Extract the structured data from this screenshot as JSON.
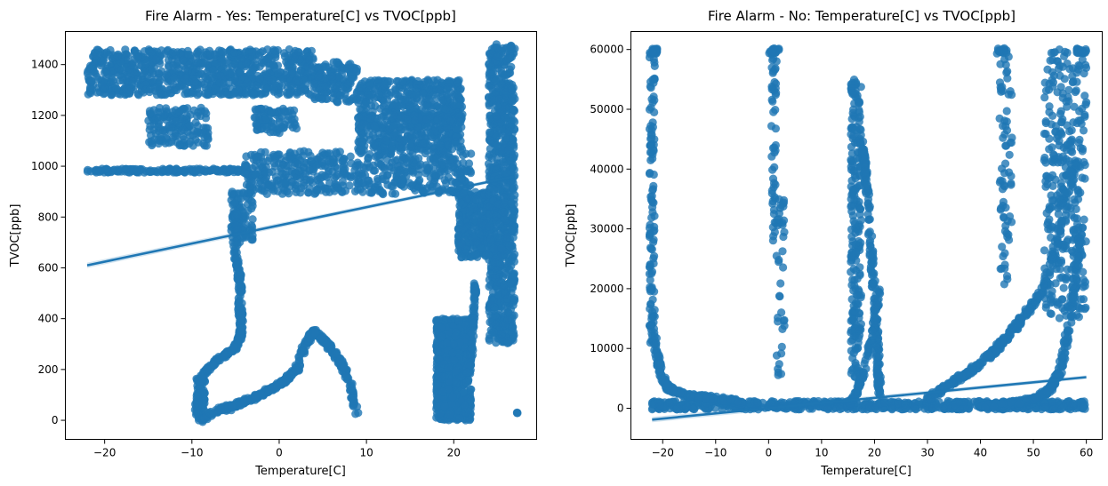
{
  "chart_data": [
    {
      "type": "scatter",
      "title": "Fire Alarm - Yes: Temperature[C] vs TVOC[ppb]",
      "xlabel": "Temperature[C]",
      "ylabel": "TVOC[ppb]",
      "xlim": [
        -24.5,
        29.5
      ],
      "ylim": [
        -75,
        1530
      ],
      "xticks": [
        -20,
        -10,
        0,
        10,
        20
      ],
      "yticks": [
        0,
        200,
        400,
        600,
        800,
        1000,
        1200,
        1400
      ],
      "grid": false,
      "point_color": "#1f77b4",
      "regression_line": {
        "x": [
          -22,
          27
        ],
        "y": [
          610,
          960
        ]
      },
      "point_bands": [
        {
          "x0": -22,
          "x1": 4,
          "y0": 1280,
          "y1": 1460,
          "n": 900
        },
        {
          "x0": 4,
          "x1": 9,
          "y0": 1250,
          "y1": 1410,
          "n": 150
        },
        {
          "x0": 9,
          "x1": 21,
          "y0": 1180,
          "y1": 1340,
          "n": 350
        },
        {
          "x0": -15,
          "x1": -8,
          "y0": 1080,
          "y1": 1230,
          "n": 150
        },
        {
          "x0": -3,
          "x1": 2,
          "y0": 1130,
          "y1": 1230,
          "n": 80
        },
        {
          "x0": -22,
          "x1": -4,
          "y0": 975,
          "y1": 990,
          "n": 160
        },
        {
          "x0": -4,
          "x1": 22,
          "y0": 890,
          "y1": 1060,
          "n": 550
        },
        {
          "x0": 9,
          "x1": 21,
          "y0": 1060,
          "y1": 1200,
          "n": 350
        },
        {
          "x0": -5.5,
          "x1": -3,
          "y0": 700,
          "y1": 900,
          "n": 90
        },
        {
          "x0": 20.5,
          "x1": 24,
          "y0": 640,
          "y1": 900,
          "n": 260
        },
        {
          "x0": 24,
          "x1": 27,
          "y0": 300,
          "y1": 1480,
          "n": 900
        },
        {
          "x0": 18,
          "x1": 22,
          "y0": 0,
          "y1": 400,
          "n": 800
        },
        {
          "x0": -9.5,
          "x1": -8.5,
          "y0": 0,
          "y1": 180,
          "n": 50
        }
      ],
      "point_curves": [
        {
          "x": [
            -5,
            -5,
            -4.5,
            -4.5,
            -4.3,
            -4.5,
            -5.2,
            -6.5,
            -8,
            -9.3,
            -9.5
          ],
          "y": [
            820,
            650,
            550,
            450,
            380,
            320,
            280,
            250,
            210,
            150,
            20
          ],
          "n": 320,
          "spread": 0.45
        },
        {
          "x": [
            -9,
            -7,
            -5,
            -3,
            0,
            2,
            3,
            4,
            5,
            6,
            7,
            8,
            9
          ],
          "y": [
            0,
            40,
            60,
            90,
            140,
            200,
            300,
            350,
            320,
            280,
            230,
            160,
            20
          ],
          "n": 380,
          "spread": 0.5
        },
        {
          "x": [
            -6,
            -4,
            -2,
            0,
            1
          ],
          "y": [
            40,
            70,
            100,
            140,
            160
          ],
          "n": 100,
          "spread": 0.4
        },
        {
          "x": [
            22,
            22.2,
            22.3,
            22.5
          ],
          "y": [
            250,
            350,
            450,
            540
          ],
          "n": 60,
          "spread": 0.3
        },
        {
          "x": [
            27.3
          ],
          "y": [
            30
          ],
          "n": 3,
          "spread": 0.1
        }
      ]
    },
    {
      "type": "scatter",
      "title": "Fire Alarm - No: Temperature[C] vs TVOC[ppb]",
      "xlabel": "Temperature[C]",
      "ylabel": "TVOC[ppb]",
      "xlim": [
        -26,
        63
      ],
      "ylim": [
        -5200,
        63000
      ],
      "xticks": [
        -20,
        -10,
        0,
        10,
        20,
        30,
        40,
        50,
        60
      ],
      "yticks": [
        0,
        10000,
        20000,
        30000,
        40000,
        50000,
        60000
      ],
      "grid": false,
      "point_color": "#1f77b4",
      "regression_line": {
        "x": [
          -22,
          60
        ],
        "y": [
          -1900,
          5200
        ]
      },
      "point_bands": [
        {
          "x0": -22,
          "x1": 60,
          "y0": -200,
          "y1": 1200,
          "n": 700
        },
        {
          "x0": -22.5,
          "x1": -21.5,
          "y0": 10000,
          "y1": 60000,
          "n": 120
        },
        {
          "x0": 0.5,
          "x1": 1.5,
          "y0": 28000,
          "y1": 60000,
          "n": 50
        },
        {
          "x0": 1.5,
          "x1": 3,
          "y0": 5000,
          "y1": 35000,
          "n": 40
        },
        {
          "x0": 15.5,
          "x1": 17.5,
          "y0": 5000,
          "y1": 55000,
          "n": 220
        },
        {
          "x0": 43.5,
          "x1": 46,
          "y0": 20000,
          "y1": 60000,
          "n": 70
        },
        {
          "x0": 52,
          "x1": 60,
          "y0": 15000,
          "y1": 60000,
          "n": 320
        },
        {
          "x0": -22,
          "x1": -21,
          "y0": 59300,
          "y1": 60200,
          "n": 30
        },
        {
          "x0": 0,
          "x1": 2,
          "y0": 59300,
          "y1": 60200,
          "n": 20
        },
        {
          "x0": 43,
          "x1": 45,
          "y0": 59300,
          "y1": 60200,
          "n": 20
        },
        {
          "x0": 58,
          "x1": 60,
          "y0": 59300,
          "y1": 60200,
          "n": 20
        }
      ],
      "point_curves": [
        {
          "x": [
            -21.5,
            -20.5,
            -19,
            -17,
            -14,
            -10,
            -6
          ],
          "y": [
            12000,
            6000,
            3500,
            2500,
            2000,
            1700,
            1200
          ],
          "n": 200,
          "spread": 0.5
        },
        {
          "x": [
            17.5,
            18.5,
            19.5,
            20.5,
            21
          ],
          "y": [
            45000,
            38000,
            25000,
            12000,
            2000
          ],
          "n": 200,
          "spread": 0.4
        },
        {
          "x": [
            15,
            16.5,
            18,
            19.5,
            21
          ],
          "y": [
            600,
            2500,
            6000,
            12000,
            20000
          ],
          "n": 90,
          "spread": 0.4
        },
        {
          "x": [
            30,
            34,
            38,
            42,
            45,
            48,
            52,
            55,
            58
          ],
          "y": [
            1500,
            4000,
            6000,
            9000,
            12000,
            15000,
            20000,
            30000,
            42000
          ],
          "n": 360,
          "spread": 0.6
        },
        {
          "x": [
            40,
            45,
            50,
            53,
            55,
            57,
            59
          ],
          "y": [
            200,
            700,
            1500,
            3000,
            6000,
            15000,
            30000
          ],
          "n": 260,
          "spread": 0.5
        }
      ]
    }
  ]
}
